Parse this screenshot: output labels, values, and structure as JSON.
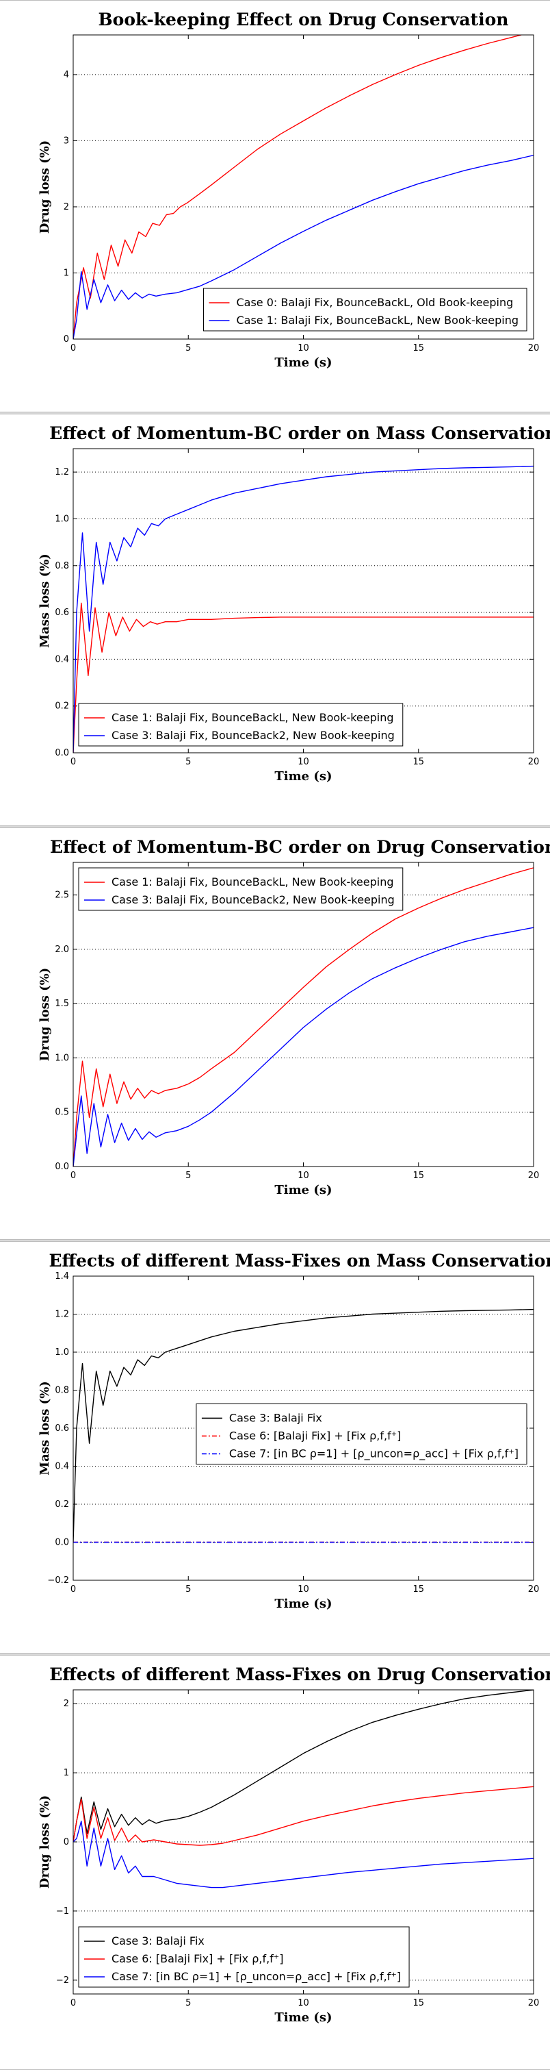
{
  "chart_data": [
    {
      "type": "line",
      "title": "Book-keeping Effect on Drug Conservation",
      "xlabel": "Time (s)",
      "ylabel": "Drug loss (%)",
      "xlim": [
        0,
        20
      ],
      "ylim": [
        0,
        4.6
      ],
      "xticks": [
        "0",
        "5",
        "10",
        "15",
        "20"
      ],
      "yticks": [
        "0",
        "1",
        "2",
        "3",
        "4"
      ],
      "grid": "horizontal dotted",
      "legend": "bottom-right",
      "series": [
        {
          "name": "Case 0: Balaji Fix, BounceBackL, Old Book-keeping",
          "color": "#ff0000",
          "dash": "solid",
          "x": [
            0,
            0.15,
            0.45,
            0.75,
            1.05,
            1.35,
            1.65,
            1.95,
            2.25,
            2.55,
            2.85,
            3.15,
            3.45,
            3.75,
            4.05,
            4.35,
            4.65,
            4.95,
            5.5,
            6,
            7,
            8,
            9,
            10,
            11,
            12,
            13,
            14,
            15,
            16,
            17,
            18,
            19,
            20
          ],
          "y": [
            0,
            0.55,
            1.08,
            0.62,
            1.3,
            0.9,
            1.42,
            1.1,
            1.5,
            1.3,
            1.62,
            1.55,
            1.75,
            1.72,
            1.88,
            1.9,
            2.0,
            2.06,
            2.2,
            2.33,
            2.6,
            2.87,
            3.1,
            3.3,
            3.5,
            3.68,
            3.85,
            4.0,
            4.14,
            4.26,
            4.37,
            4.47,
            4.56,
            4.65
          ]
        },
        {
          "name": "Case 1: Balaji Fix, BounceBackL, New Book-keeping",
          "color": "#0000ff",
          "dash": "solid",
          "x": [
            0,
            0.15,
            0.35,
            0.6,
            0.9,
            1.2,
            1.5,
            1.8,
            2.1,
            2.4,
            2.7,
            3.0,
            3.3,
            3.6,
            4.0,
            4.5,
            5,
            5.5,
            6,
            7,
            8,
            9,
            10,
            11,
            12,
            13,
            14,
            15,
            16,
            17,
            18,
            19,
            20
          ],
          "y": [
            0,
            0.3,
            1.02,
            0.45,
            0.9,
            0.55,
            0.82,
            0.58,
            0.74,
            0.6,
            0.7,
            0.62,
            0.68,
            0.65,
            0.68,
            0.7,
            0.75,
            0.8,
            0.88,
            1.05,
            1.25,
            1.45,
            1.63,
            1.8,
            1.95,
            2.1,
            2.23,
            2.35,
            2.45,
            2.55,
            2.63,
            2.7,
            2.78
          ]
        }
      ]
    },
    {
      "type": "line",
      "title": "Effect of Momentum-BC order on Mass Conservation",
      "xlabel": "Time (s)",
      "ylabel": "Mass loss (%)",
      "xlim": [
        0,
        20
      ],
      "ylim": [
        0,
        1.3
      ],
      "xticks": [
        "0",
        "5",
        "10",
        "15",
        "20"
      ],
      "yticks": [
        "0.0",
        "0.2",
        "0.4",
        "0.6",
        "0.8",
        "1.0",
        "1.2"
      ],
      "grid": "horizontal dotted",
      "legend": "bottom-left",
      "series": [
        {
          "name": "Case 1: Balaji Fix, BounceBackL, New Book-keeping",
          "color": "#ff0000",
          "dash": "solid",
          "x": [
            0,
            0.15,
            0.35,
            0.65,
            0.95,
            1.25,
            1.55,
            1.85,
            2.15,
            2.45,
            2.75,
            3.05,
            3.35,
            3.65,
            4.0,
            4.5,
            5,
            6,
            7,
            8,
            9,
            10,
            12,
            14,
            16,
            18,
            20
          ],
          "y": [
            0,
            0.3,
            0.64,
            0.33,
            0.62,
            0.43,
            0.6,
            0.5,
            0.58,
            0.52,
            0.57,
            0.54,
            0.56,
            0.55,
            0.56,
            0.56,
            0.57,
            0.57,
            0.575,
            0.578,
            0.58,
            0.58,
            0.58,
            0.58,
            0.58,
            0.58,
            0.58
          ]
        },
        {
          "name": "Case 3: Balaji Fix, BounceBack2, New Book-keeping",
          "color": "#0000ff",
          "dash": "solid",
          "x": [
            0,
            0.15,
            0.4,
            0.7,
            1.0,
            1.3,
            1.6,
            1.9,
            2.2,
            2.5,
            2.8,
            3.1,
            3.4,
            3.7,
            4.0,
            4.5,
            5,
            5.5,
            6,
            7,
            8,
            9,
            10,
            11,
            12,
            13,
            14,
            15,
            16,
            17,
            18,
            19,
            20
          ],
          "y": [
            0,
            0.6,
            0.94,
            0.52,
            0.9,
            0.72,
            0.9,
            0.82,
            0.92,
            0.88,
            0.96,
            0.93,
            0.98,
            0.97,
            1.0,
            1.02,
            1.04,
            1.06,
            1.08,
            1.11,
            1.13,
            1.15,
            1.165,
            1.18,
            1.19,
            1.2,
            1.205,
            1.21,
            1.215,
            1.218,
            1.22,
            1.222,
            1.225
          ]
        }
      ]
    },
    {
      "type": "line",
      "title": "Effect of Momentum-BC order on Drug Conservation",
      "xlabel": "Time (s)",
      "ylabel": "Drug loss (%)",
      "xlim": [
        0,
        20
      ],
      "ylim": [
        0,
        2.8
      ],
      "xticks": [
        "0",
        "5",
        "10",
        "15",
        "20"
      ],
      "yticks": [
        "0.0",
        "0.5",
        "1.0",
        "1.5",
        "2.0",
        "2.5"
      ],
      "grid": "horizontal dotted",
      "legend": "top-left",
      "series": [
        {
          "name": "Case 1: Balaji Fix, BounceBackL, New Book-keeping",
          "color": "#ff0000",
          "dash": "solid",
          "x": [
            0,
            0.15,
            0.4,
            0.7,
            1.0,
            1.3,
            1.6,
            1.9,
            2.2,
            2.5,
            2.8,
            3.1,
            3.4,
            3.7,
            4.0,
            4.5,
            5,
            5.5,
            6,
            7,
            8,
            9,
            10,
            11,
            12,
            13,
            14,
            15,
            16,
            17,
            18,
            19,
            20
          ],
          "y": [
            0,
            0.45,
            0.97,
            0.45,
            0.9,
            0.55,
            0.85,
            0.58,
            0.78,
            0.62,
            0.72,
            0.63,
            0.7,
            0.67,
            0.7,
            0.72,
            0.76,
            0.82,
            0.9,
            1.05,
            1.25,
            1.45,
            1.65,
            1.84,
            2.0,
            2.15,
            2.28,
            2.38,
            2.47,
            2.55,
            2.62,
            2.69,
            2.75
          ]
        },
        {
          "name": "Case 3: Balaji Fix, BounceBack2, New Book-keeping",
          "color": "#0000ff",
          "dash": "solid",
          "x": [
            0,
            0.15,
            0.35,
            0.6,
            0.9,
            1.2,
            1.5,
            1.8,
            2.1,
            2.4,
            2.7,
            3.0,
            3.3,
            3.6,
            4.0,
            4.5,
            5,
            5.5,
            6,
            7,
            8,
            9,
            10,
            11,
            12,
            13,
            14,
            15,
            16,
            17,
            18,
            19,
            20
          ],
          "y": [
            0,
            0.3,
            0.65,
            0.12,
            0.58,
            0.18,
            0.48,
            0.22,
            0.4,
            0.24,
            0.35,
            0.25,
            0.32,
            0.27,
            0.31,
            0.33,
            0.37,
            0.43,
            0.5,
            0.68,
            0.88,
            1.08,
            1.28,
            1.45,
            1.6,
            1.73,
            1.83,
            1.92,
            2.0,
            2.07,
            2.12,
            2.16,
            2.2
          ]
        }
      ]
    },
    {
      "type": "line",
      "title": "Effects of different Mass-Fixes on Mass Conservation",
      "xlabel": "Time (s)",
      "ylabel": "Mass loss (%)",
      "xlim": [
        0,
        20
      ],
      "ylim": [
        -0.2,
        1.4
      ],
      "xticks": [
        "0",
        "5",
        "10",
        "15",
        "20"
      ],
      "yticks": [
        "−0.2",
        "0.0",
        "0.2",
        "0.4",
        "0.6",
        "0.8",
        "1.0",
        "1.2",
        "1.4"
      ],
      "grid": "horizontal dotted",
      "legend": "center-right",
      "series": [
        {
          "name": "Case 3: Balaji Fix",
          "color": "#000000",
          "dash": "solid",
          "x": [
            0,
            0.15,
            0.4,
            0.7,
            1.0,
            1.3,
            1.6,
            1.9,
            2.2,
            2.5,
            2.8,
            3.1,
            3.4,
            3.7,
            4.0,
            4.5,
            5,
            5.5,
            6,
            7,
            8,
            9,
            10,
            11,
            12,
            13,
            14,
            15,
            16,
            17,
            18,
            19,
            20
          ],
          "y": [
            0,
            0.6,
            0.94,
            0.52,
            0.9,
            0.72,
            0.9,
            0.82,
            0.92,
            0.88,
            0.96,
            0.93,
            0.98,
            0.97,
            1.0,
            1.02,
            1.04,
            1.06,
            1.08,
            1.11,
            1.13,
            1.15,
            1.165,
            1.18,
            1.19,
            1.2,
            1.205,
            1.21,
            1.215,
            1.218,
            1.22,
            1.222,
            1.225
          ]
        },
        {
          "name": "Case 6: [Balaji Fix] + [Fix ρ,f,f⁺]",
          "color": "#ff0000",
          "dash": "dashdot",
          "x": [
            0,
            20
          ],
          "y": [
            0,
            0
          ]
        },
        {
          "name": "Case 7: [in BC ρ=1] + [ρ_uncon=ρ_acc] + [Fix ρ,f,f⁺]",
          "color": "#0000ff",
          "dash": "dashdot",
          "x": [
            0,
            20
          ],
          "y": [
            0,
            0
          ]
        }
      ]
    },
    {
      "type": "line",
      "title": "Effects of different Mass-Fixes on Drug Conservation",
      "xlabel": "Time (s)",
      "ylabel": "Drug loss (%)",
      "xlim": [
        0,
        20
      ],
      "ylim": [
        -2.2,
        2.2
      ],
      "xticks": [
        "0",
        "5",
        "10",
        "15",
        "20"
      ],
      "yticks": [
        "−2",
        "−1",
        "0",
        "1",
        "2"
      ],
      "grid": "horizontal dotted",
      "legend": "bottom-left",
      "series": [
        {
          "name": "Case 3: Balaji Fix",
          "color": "#000000",
          "dash": "solid",
          "x": [
            0,
            0.15,
            0.35,
            0.6,
            0.9,
            1.2,
            1.5,
            1.8,
            2.1,
            2.4,
            2.7,
            3.0,
            3.3,
            3.6,
            4.0,
            4.5,
            5,
            5.5,
            6,
            7,
            8,
            9,
            10,
            11,
            12,
            13,
            14,
            15,
            16,
            17,
            18,
            19,
            20
          ],
          "y": [
            0,
            0.3,
            0.65,
            0.12,
            0.58,
            0.18,
            0.48,
            0.22,
            0.4,
            0.24,
            0.35,
            0.25,
            0.32,
            0.27,
            0.31,
            0.33,
            0.37,
            0.43,
            0.5,
            0.68,
            0.88,
            1.08,
            1.28,
            1.45,
            1.6,
            1.73,
            1.83,
            1.92,
            2.0,
            2.07,
            2.12,
            2.16,
            2.2
          ]
        },
        {
          "name": "Case 6: [Balaji Fix] + [Fix ρ,f,f⁺]",
          "color": "#ff0000",
          "dash": "solid",
          "x": [
            0,
            0.15,
            0.35,
            0.6,
            0.9,
            1.2,
            1.5,
            1.8,
            2.1,
            2.4,
            2.7,
            3.0,
            3.5,
            4.0,
            4.5,
            5,
            5.5,
            6,
            6.5,
            7,
            8,
            9,
            10,
            11,
            12,
            13,
            14,
            15,
            16,
            17,
            18,
            19,
            20
          ],
          "y": [
            0,
            0.3,
            0.62,
            0.05,
            0.5,
            0.05,
            0.35,
            0.02,
            0.2,
            0.0,
            0.1,
            0.0,
            0.03,
            0.0,
            -0.03,
            -0.04,
            -0.05,
            -0.04,
            -0.02,
            0.02,
            0.1,
            0.2,
            0.3,
            0.38,
            0.45,
            0.52,
            0.58,
            0.63,
            0.67,
            0.71,
            0.74,
            0.77,
            0.8
          ]
        },
        {
          "name": "Case 7: [in BC ρ=1] + [ρ_uncon=ρ_acc] + [Fix ρ,f,f⁺]",
          "color": "#0000ff",
          "dash": "solid",
          "x": [
            0,
            0.15,
            0.35,
            0.6,
            0.9,
            1.2,
            1.5,
            1.8,
            2.1,
            2.4,
            2.7,
            3.0,
            3.5,
            4.0,
            4.5,
            5,
            5.5,
            6,
            6.5,
            7,
            8,
            9,
            10,
            11,
            12,
            13,
            14,
            15,
            16,
            17,
            18,
            19,
            20
          ],
          "y": [
            0,
            0.05,
            0.3,
            -0.35,
            0.2,
            -0.35,
            0.05,
            -0.4,
            -0.2,
            -0.45,
            -0.35,
            -0.5,
            -0.5,
            -0.55,
            -0.6,
            -0.62,
            -0.64,
            -0.66,
            -0.66,
            -0.64,
            -0.6,
            -0.56,
            -0.52,
            -0.48,
            -0.44,
            -0.41,
            -0.38,
            -0.35,
            -0.32,
            -0.3,
            -0.28,
            -0.26,
            -0.24
          ]
        }
      ]
    }
  ]
}
